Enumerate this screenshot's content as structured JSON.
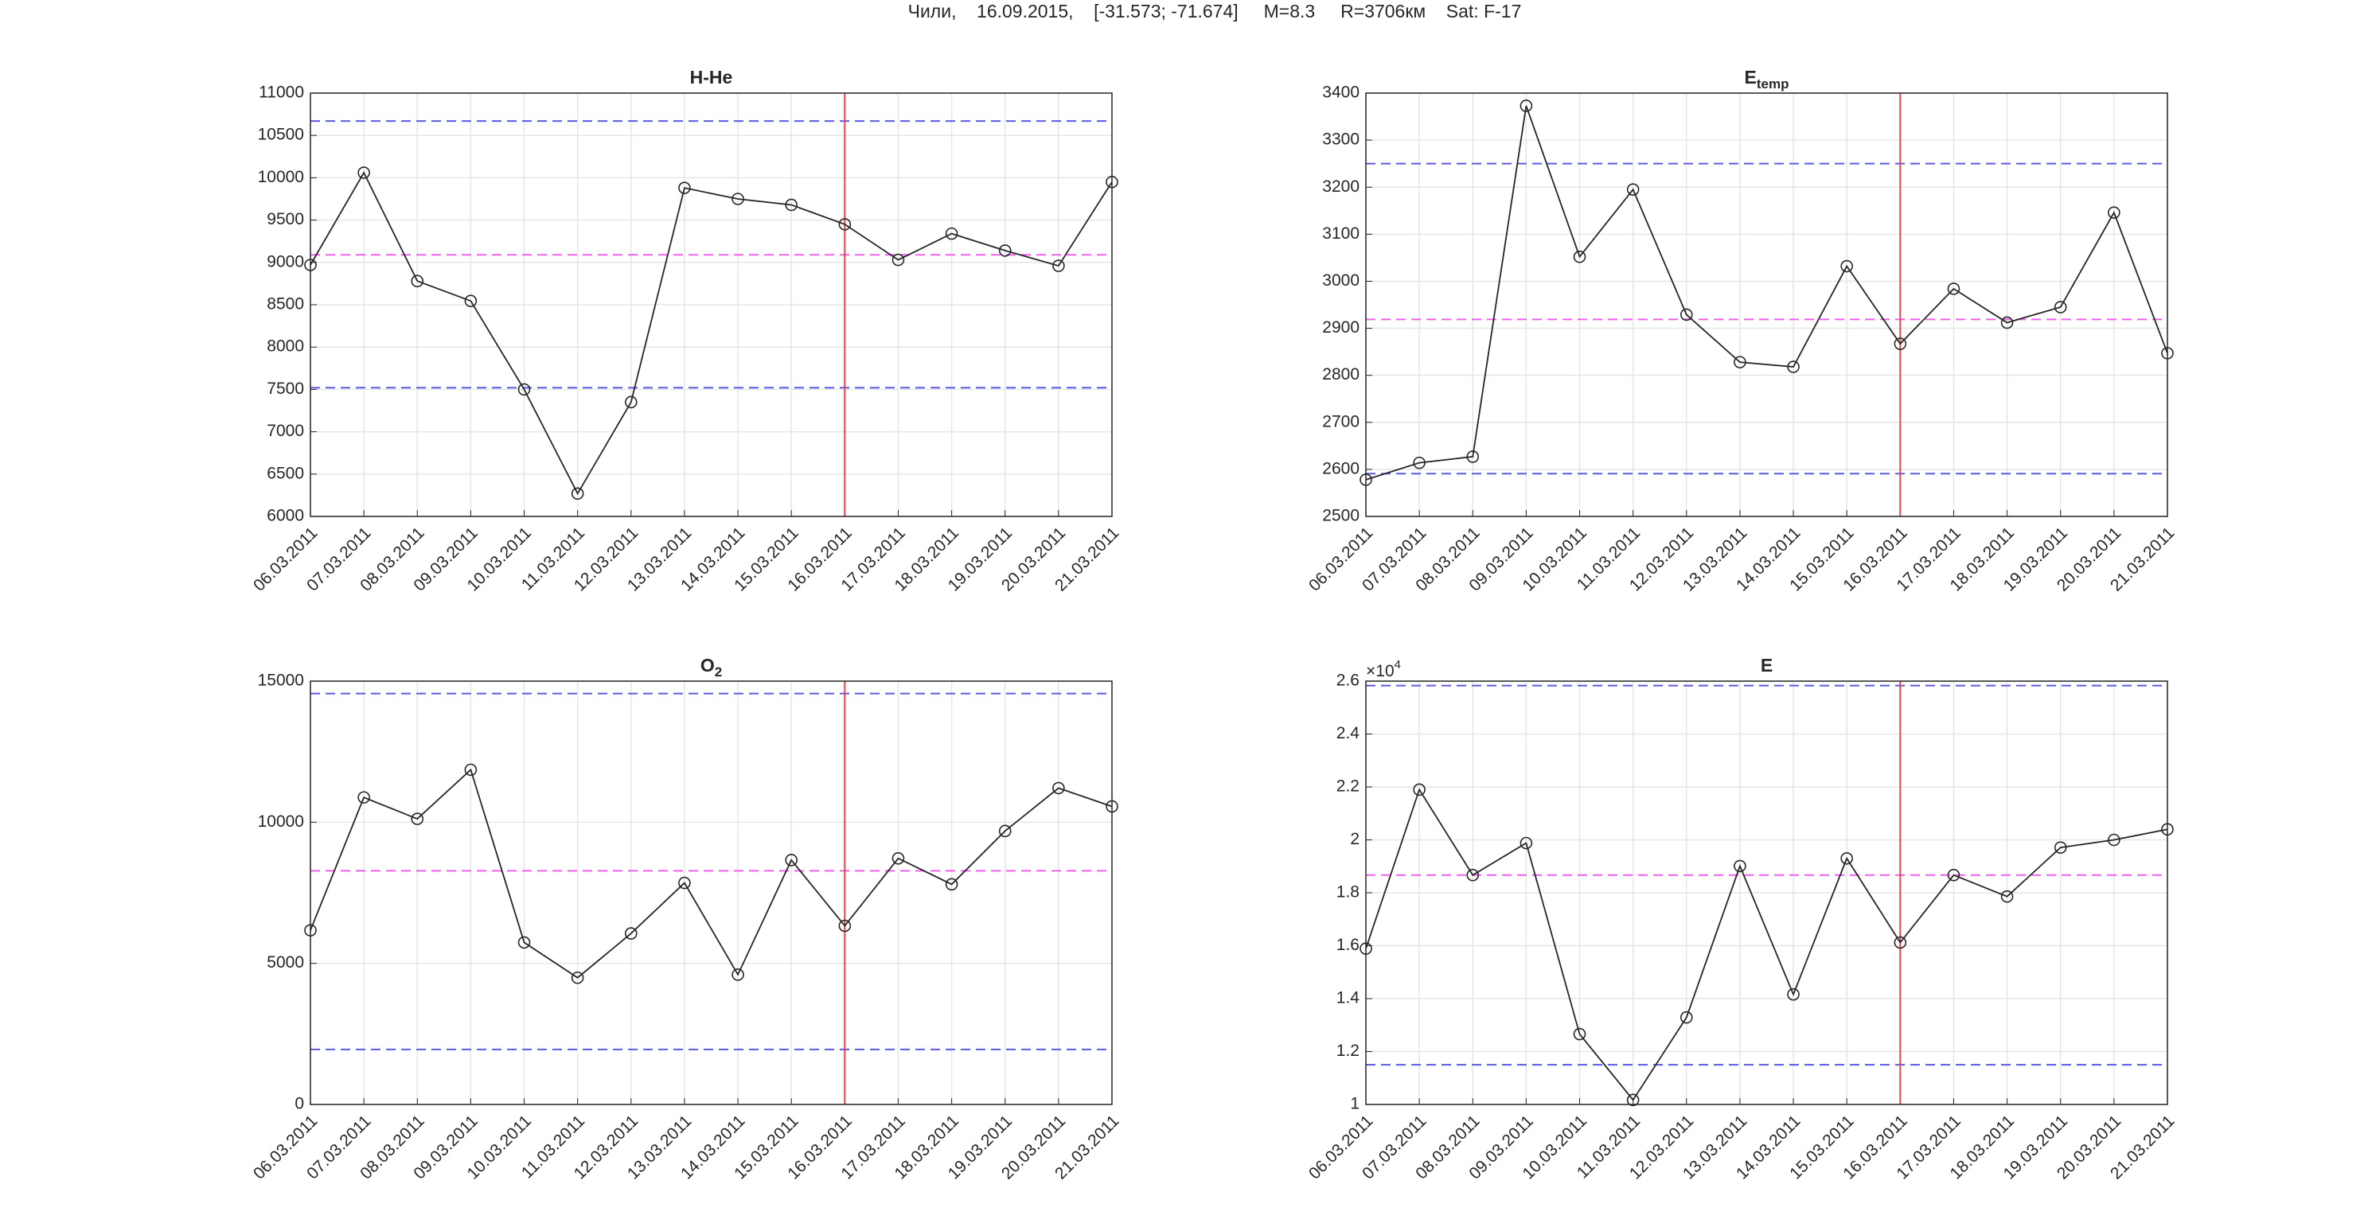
{
  "suptitle": "Чили,    16.09.2015,    [-31.573; -71.674]     M=8.3     R=3706км    Sat: F-17",
  "chart_data": [
    {
      "type": "line",
      "title": "H-He",
      "categories": [
        "06.03.2011",
        "07.03.2011",
        "08.03.2011",
        "09.03.2011",
        "10.03.2011",
        "11.03.2011",
        "12.03.2011",
        "13.03.2011",
        "14.03.2011",
        "15.03.2011",
        "16.03.2011",
        "17.03.2011",
        "18.03.2011",
        "19.03.2011",
        "20.03.2011",
        "21.03.2011"
      ],
      "values": [
        8970,
        10060,
        8780,
        8545,
        7500,
        6270,
        7350,
        9880,
        9750,
        9680,
        9450,
        9030,
        9340,
        9140,
        8960,
        9950
      ],
      "color": "#262626",
      "marker": "circle",
      "ylim": [
        6000,
        11000
      ],
      "yticks": [
        6000,
        6500,
        7000,
        7500,
        8000,
        8500,
        9000,
        9500,
        10000,
        10500,
        11000
      ],
      "grid": true,
      "hlines": [
        {
          "value": 10670,
          "color": "#5a5ae6"
        },
        {
          "value": 7520,
          "color": "#5a5ae6"
        },
        {
          "value": 9090,
          "color": "#f060f0"
        }
      ],
      "vline": {
        "category": "16.03.2011",
        "color": "#e8404a"
      }
    },
    {
      "type": "line",
      "title": "E",
      "title_sub": "temp",
      "categories": [
        "06.03.2011",
        "07.03.2011",
        "08.03.2011",
        "09.03.2011",
        "10.03.2011",
        "11.03.2011",
        "12.03.2011",
        "13.03.2011",
        "14.03.2011",
        "15.03.2011",
        "16.03.2011",
        "17.03.2011",
        "18.03.2011",
        "19.03.2011",
        "20.03.2011",
        "21.03.2011"
      ],
      "values": [
        2578,
        2614,
        2627,
        3373,
        3052,
        3195,
        2929,
        2828,
        2818,
        3032,
        2867,
        2984,
        2912,
        2945,
        3146,
        2847
      ],
      "color": "#262626",
      "marker": "circle",
      "ylim": [
        2500,
        3400
      ],
      "yticks": [
        2500,
        2600,
        2700,
        2800,
        2900,
        3000,
        3100,
        3200,
        3300,
        3400
      ],
      "grid": true,
      "hlines": [
        {
          "value": 3250,
          "color": "#5a5ae6"
        },
        {
          "value": 2591,
          "color": "#5a5ae6"
        },
        {
          "value": 2919,
          "color": "#f060f0"
        }
      ],
      "vline": {
        "category": "16.03.2011",
        "color": "#e8404a"
      }
    },
    {
      "type": "line",
      "title": "O",
      "title_sub": "2",
      "categories": [
        "06.03.2011",
        "07.03.2011",
        "08.03.2011",
        "09.03.2011",
        "10.03.2011",
        "11.03.2011",
        "12.03.2011",
        "13.03.2011",
        "14.03.2011",
        "15.03.2011",
        "16.03.2011",
        "17.03.2011",
        "18.03.2011",
        "19.03.2011",
        "20.03.2011",
        "21.03.2011"
      ],
      "values": [
        6170,
        10880,
        10120,
        11860,
        5740,
        4490,
        6060,
        7850,
        4600,
        8660,
        6330,
        8720,
        7800,
        9690,
        11210,
        10560
      ],
      "color": "#262626",
      "marker": "circle",
      "ylim": [
        0,
        15000
      ],
      "yticks": [
        0,
        5000,
        10000,
        15000
      ],
      "grid": true,
      "hlines": [
        {
          "value": 14560,
          "color": "#5a5ae6"
        },
        {
          "value": 1950,
          "color": "#5a5ae6"
        },
        {
          "value": 8280,
          "color": "#f060f0"
        }
      ],
      "vline": {
        "category": "16.03.2011",
        "color": "#e8404a"
      }
    },
    {
      "type": "line",
      "title": "E",
      "y_exponent_base": "×10",
      "y_exponent": "4",
      "categories": [
        "06.03.2011",
        "07.03.2011",
        "08.03.2011",
        "09.03.2011",
        "10.03.2011",
        "11.03.2011",
        "12.03.2011",
        "13.03.2011",
        "14.03.2011",
        "15.03.2011",
        "16.03.2011",
        "17.03.2011",
        "18.03.2011",
        "19.03.2011",
        "20.03.2011",
        "21.03.2011"
      ],
      "values": [
        1.589,
        2.19,
        1.867,
        1.988,
        1.266,
        1.017,
        1.329,
        1.901,
        1.416,
        1.93,
        1.612,
        1.867,
        1.786,
        1.971,
        2.0,
        2.04
      ],
      "color": "#262626",
      "marker": "circle",
      "ylim": [
        1,
        2.6
      ],
      "yticks": [
        1,
        1.2,
        1.4,
        1.6,
        1.8,
        2,
        2.2,
        2.4,
        2.6
      ],
      "grid": true,
      "hlines": [
        {
          "value": 2.583,
          "color": "#5a5ae6"
        },
        {
          "value": 1.15,
          "color": "#5a5ae6"
        },
        {
          "value": 1.867,
          "color": "#f060f0"
        }
      ],
      "vline": {
        "category": "16.03.2011",
        "color": "#e8404a"
      }
    }
  ]
}
